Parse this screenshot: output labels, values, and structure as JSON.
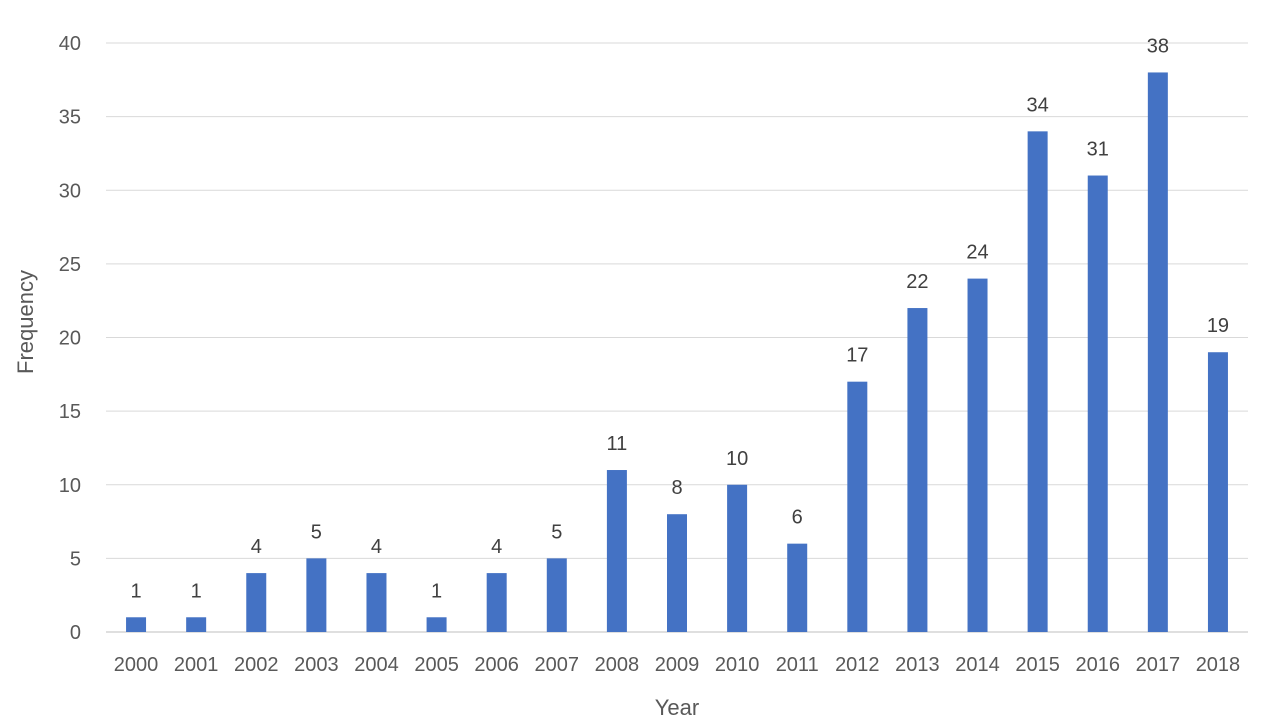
{
  "chart_data": {
    "type": "bar",
    "title": "",
    "xlabel": "Year",
    "ylabel": "Frequency",
    "categories": [
      "2000",
      "2001",
      "2002",
      "2003",
      "2004",
      "2005",
      "2006",
      "2007",
      "2008",
      "2009",
      "2010",
      "2011",
      "2012",
      "2013",
      "2014",
      "2015",
      "2016",
      "2017",
      "2018"
    ],
    "values": [
      1,
      1,
      4,
      5,
      4,
      1,
      4,
      5,
      11,
      8,
      10,
      6,
      17,
      22,
      24,
      34,
      31,
      38,
      19
    ],
    "ylim": [
      0,
      40
    ],
    "yticks": [
      0,
      5,
      10,
      15,
      20,
      25,
      30,
      35,
      40
    ],
    "grid": true,
    "legend": "none",
    "bar_color": "#4472c4",
    "data_labels": true
  }
}
